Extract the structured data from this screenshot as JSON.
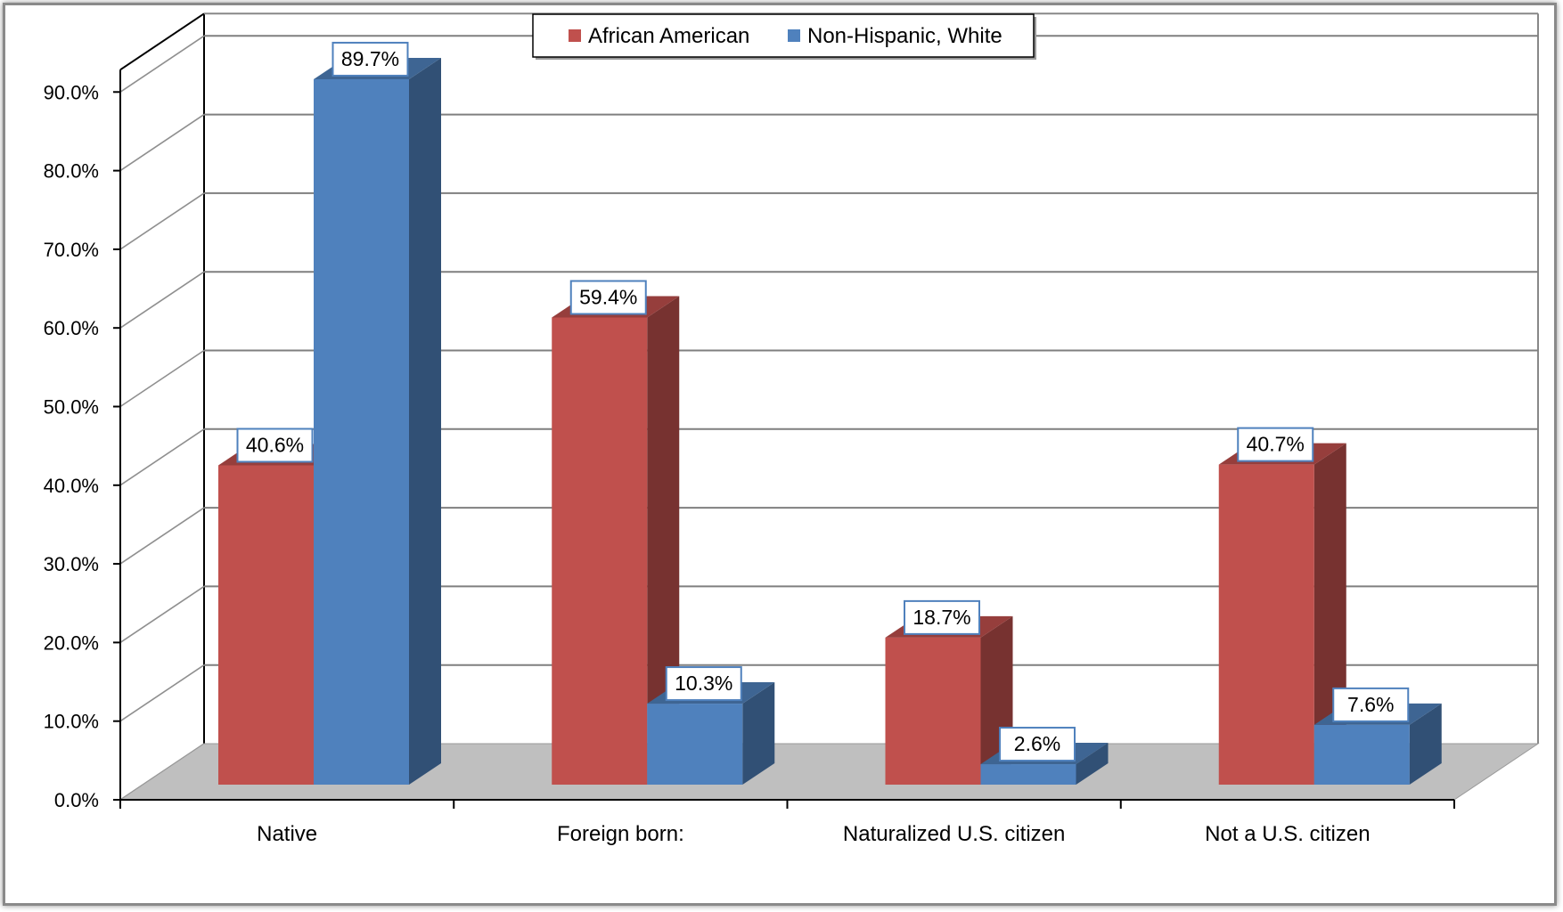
{
  "chart_data": {
    "type": "bar",
    "categories": [
      "Native",
      "Foreign born:",
      "Naturalized U.S. citizen",
      "Not a U.S. citizen"
    ],
    "series": [
      {
        "name": "African American",
        "values": [
          40.6,
          59.4,
          18.7,
          40.7
        ],
        "labels": [
          "40.6%",
          "59.4%",
          "18.7%",
          "40.7%"
        ]
      },
      {
        "name": "Non-Hispanic, White",
        "values": [
          89.7,
          10.3,
          2.6,
          7.6
        ],
        "labels": [
          "89.7%",
          "10.3%",
          "2.6%",
          "7.6%"
        ]
      }
    ],
    "ylim": [
      0,
      90
    ],
    "y_ticks": [
      0,
      10,
      20,
      30,
      40,
      50,
      60,
      70,
      80,
      90
    ],
    "y_tick_labels": [
      "0.0%",
      "10.0%",
      "20.0%",
      "30.0%",
      "40.0%",
      "50.0%",
      "60.0%",
      "70.0%",
      "80.0%",
      "90.0%"
    ],
    "grid": true,
    "legend_position": "top-center",
    "style": "3d-clustered-column",
    "colors": {
      "African American": "#c0504d",
      "Non-Hispanic, White": "#4f81bd",
      "floor": "#bfbfbf"
    }
  }
}
